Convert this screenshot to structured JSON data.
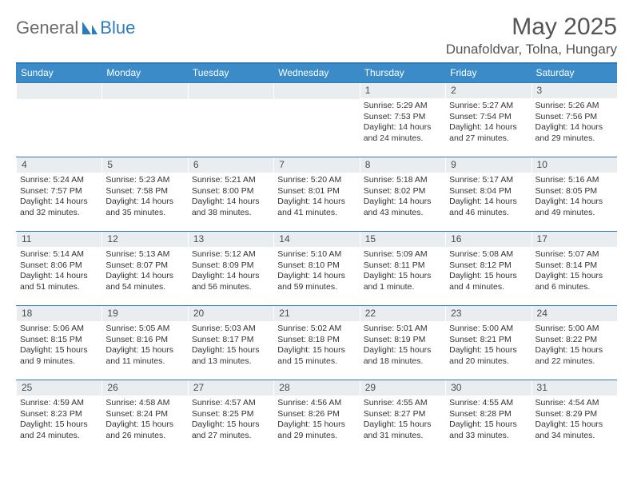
{
  "brand": {
    "part1": "General",
    "part2": "Blue"
  },
  "title": "May 2025",
  "location": "Dunafoldvar, Tolna, Hungary",
  "colors": {
    "header_bar": "#3b8bc9",
    "rule": "#2f79b8",
    "daynum_bg": "#e9edf0",
    "text": "#333333",
    "title_text": "#555555"
  },
  "dow": [
    "Sunday",
    "Monday",
    "Tuesday",
    "Wednesday",
    "Thursday",
    "Friday",
    "Saturday"
  ],
  "weeks": [
    [
      {
        "n": "",
        "sr": "",
        "ss": "",
        "dl": ""
      },
      {
        "n": "",
        "sr": "",
        "ss": "",
        "dl": ""
      },
      {
        "n": "",
        "sr": "",
        "ss": "",
        "dl": ""
      },
      {
        "n": "",
        "sr": "",
        "ss": "",
        "dl": ""
      },
      {
        "n": "1",
        "sr": "5:29 AM",
        "ss": "7:53 PM",
        "dl": "14 hours and 24 minutes."
      },
      {
        "n": "2",
        "sr": "5:27 AM",
        "ss": "7:54 PM",
        "dl": "14 hours and 27 minutes."
      },
      {
        "n": "3",
        "sr": "5:26 AM",
        "ss": "7:56 PM",
        "dl": "14 hours and 29 minutes."
      }
    ],
    [
      {
        "n": "4",
        "sr": "5:24 AM",
        "ss": "7:57 PM",
        "dl": "14 hours and 32 minutes."
      },
      {
        "n": "5",
        "sr": "5:23 AM",
        "ss": "7:58 PM",
        "dl": "14 hours and 35 minutes."
      },
      {
        "n": "6",
        "sr": "5:21 AM",
        "ss": "8:00 PM",
        "dl": "14 hours and 38 minutes."
      },
      {
        "n": "7",
        "sr": "5:20 AM",
        "ss": "8:01 PM",
        "dl": "14 hours and 41 minutes."
      },
      {
        "n": "8",
        "sr": "5:18 AM",
        "ss": "8:02 PM",
        "dl": "14 hours and 43 minutes."
      },
      {
        "n": "9",
        "sr": "5:17 AM",
        "ss": "8:04 PM",
        "dl": "14 hours and 46 minutes."
      },
      {
        "n": "10",
        "sr": "5:16 AM",
        "ss": "8:05 PM",
        "dl": "14 hours and 49 minutes."
      }
    ],
    [
      {
        "n": "11",
        "sr": "5:14 AM",
        "ss": "8:06 PM",
        "dl": "14 hours and 51 minutes."
      },
      {
        "n": "12",
        "sr": "5:13 AM",
        "ss": "8:07 PM",
        "dl": "14 hours and 54 minutes."
      },
      {
        "n": "13",
        "sr": "5:12 AM",
        "ss": "8:09 PM",
        "dl": "14 hours and 56 minutes."
      },
      {
        "n": "14",
        "sr": "5:10 AM",
        "ss": "8:10 PM",
        "dl": "14 hours and 59 minutes."
      },
      {
        "n": "15",
        "sr": "5:09 AM",
        "ss": "8:11 PM",
        "dl": "15 hours and 1 minute."
      },
      {
        "n": "16",
        "sr": "5:08 AM",
        "ss": "8:12 PM",
        "dl": "15 hours and 4 minutes."
      },
      {
        "n": "17",
        "sr": "5:07 AM",
        "ss": "8:14 PM",
        "dl": "15 hours and 6 minutes."
      }
    ],
    [
      {
        "n": "18",
        "sr": "5:06 AM",
        "ss": "8:15 PM",
        "dl": "15 hours and 9 minutes."
      },
      {
        "n": "19",
        "sr": "5:05 AM",
        "ss": "8:16 PM",
        "dl": "15 hours and 11 minutes."
      },
      {
        "n": "20",
        "sr": "5:03 AM",
        "ss": "8:17 PM",
        "dl": "15 hours and 13 minutes."
      },
      {
        "n": "21",
        "sr": "5:02 AM",
        "ss": "8:18 PM",
        "dl": "15 hours and 15 minutes."
      },
      {
        "n": "22",
        "sr": "5:01 AM",
        "ss": "8:19 PM",
        "dl": "15 hours and 18 minutes."
      },
      {
        "n": "23",
        "sr": "5:00 AM",
        "ss": "8:21 PM",
        "dl": "15 hours and 20 minutes."
      },
      {
        "n": "24",
        "sr": "5:00 AM",
        "ss": "8:22 PM",
        "dl": "15 hours and 22 minutes."
      }
    ],
    [
      {
        "n": "25",
        "sr": "4:59 AM",
        "ss": "8:23 PM",
        "dl": "15 hours and 24 minutes."
      },
      {
        "n": "26",
        "sr": "4:58 AM",
        "ss": "8:24 PM",
        "dl": "15 hours and 26 minutes."
      },
      {
        "n": "27",
        "sr": "4:57 AM",
        "ss": "8:25 PM",
        "dl": "15 hours and 27 minutes."
      },
      {
        "n": "28",
        "sr": "4:56 AM",
        "ss": "8:26 PM",
        "dl": "15 hours and 29 minutes."
      },
      {
        "n": "29",
        "sr": "4:55 AM",
        "ss": "8:27 PM",
        "dl": "15 hours and 31 minutes."
      },
      {
        "n": "30",
        "sr": "4:55 AM",
        "ss": "8:28 PM",
        "dl": "15 hours and 33 minutes."
      },
      {
        "n": "31",
        "sr": "4:54 AM",
        "ss": "8:29 PM",
        "dl": "15 hours and 34 minutes."
      }
    ]
  ],
  "labels": {
    "sunrise": "Sunrise: ",
    "sunset": "Sunset: ",
    "daylight": "Daylight: "
  }
}
